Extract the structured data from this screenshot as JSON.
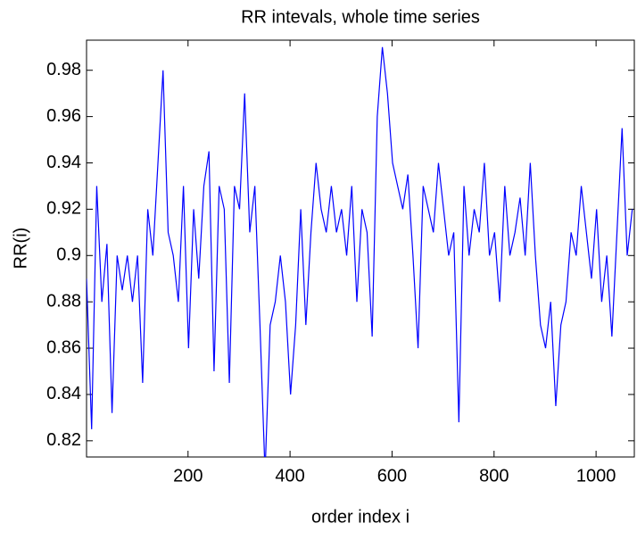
{
  "chart_data": {
    "type": "line",
    "title": "RR intevals, whole time series",
    "x_label": "order index i",
    "y_label": "RR(i)",
    "x": [
      1,
      11,
      21,
      31,
      41,
      51,
      61,
      71,
      81,
      91,
      101,
      111,
      121,
      131,
      141,
      151,
      161,
      171,
      181,
      191,
      201,
      211,
      221,
      231,
      241,
      251,
      261,
      271,
      281,
      291,
      301,
      311,
      321,
      331,
      341,
      351,
      361,
      371,
      381,
      391,
      401,
      411,
      421,
      431,
      441,
      451,
      461,
      471,
      481,
      491,
      501,
      511,
      521,
      531,
      541,
      551,
      561,
      571,
      581,
      591,
      601,
      611,
      621,
      631,
      641,
      651,
      661,
      671,
      681,
      691,
      701,
      711,
      721,
      731,
      741,
      751,
      761,
      771,
      781,
      791,
      801,
      811,
      821,
      831,
      841,
      851,
      861,
      871,
      881,
      891,
      901,
      911,
      921,
      931,
      941,
      951,
      961,
      971,
      981,
      991,
      1001,
      1011,
      1021,
      1031,
      1041,
      1051,
      1061,
      1071
    ],
    "series": [
      {
        "name": "RR",
        "color": "#0000ff",
        "values": [
          0.89,
          0.825,
          0.93,
          0.88,
          0.905,
          0.832,
          0.9,
          0.885,
          0.9,
          0.88,
          0.9,
          0.845,
          0.92,
          0.9,
          0.94,
          0.98,
          0.91,
          0.9,
          0.88,
          0.93,
          0.86,
          0.92,
          0.89,
          0.93,
          0.945,
          0.85,
          0.93,
          0.92,
          0.845,
          0.93,
          0.92,
          0.97,
          0.91,
          0.93,
          0.87,
          0.806,
          0.87,
          0.88,
          0.9,
          0.88,
          0.84,
          0.87,
          0.92,
          0.87,
          0.91,
          0.94,
          0.92,
          0.91,
          0.93,
          0.91,
          0.92,
          0.9,
          0.93,
          0.88,
          0.92,
          0.91,
          0.865,
          0.96,
          0.99,
          0.97,
          0.94,
          0.93,
          0.92,
          0.935,
          0.9,
          0.86,
          0.93,
          0.92,
          0.91,
          0.94,
          0.92,
          0.9,
          0.91,
          0.828,
          0.93,
          0.9,
          0.92,
          0.91,
          0.94,
          0.9,
          0.91,
          0.88,
          0.93,
          0.9,
          0.91,
          0.925,
          0.9,
          0.94,
          0.9,
          0.87,
          0.86,
          0.88,
          0.835,
          0.87,
          0.88,
          0.91,
          0.9,
          0.93,
          0.91,
          0.89,
          0.92,
          0.88,
          0.9,
          0.865,
          0.91,
          0.955,
          0.9,
          0.92
        ]
      }
    ],
    "xlim": [
      1,
      1075
    ],
    "ylim": [
      0.813,
      0.993
    ],
    "xticks": [
      200,
      400,
      600,
      800,
      1000
    ],
    "yticks": [
      0.82,
      0.84,
      0.86,
      0.88,
      0.9,
      0.92,
      0.94,
      0.96,
      0.98
    ]
  }
}
